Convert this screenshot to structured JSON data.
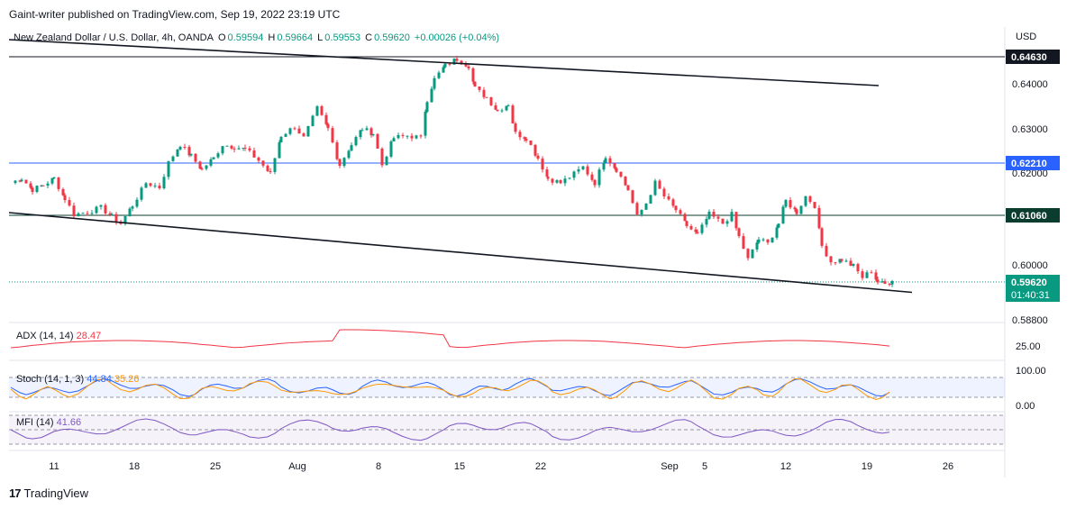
{
  "header": {
    "published": "Gaint-writer published on TradingView.com, Sep 19, 2022 23:19 UTC"
  },
  "symbol": {
    "name": "New Zealand Dollar / U.S. Dollar, 4h, OANDA",
    "open_label": "O",
    "open": "0.59594",
    "high_label": "H",
    "high": "0.59664",
    "low_label": "L",
    "low": "0.59553",
    "close_label": "C",
    "close": "0.59620",
    "change": "+0.00026 (+0.04%)"
  },
  "currency": "USD",
  "price_badges": {
    "top_line": "0.64630",
    "blue_line": "0.62210",
    "dark_line": "0.61060",
    "current_price": "0.59620",
    "countdown": "01:40:31"
  },
  "indicators": {
    "adx": {
      "label": "ADX (14, 14)",
      "value": "28.47",
      "level": "25.00"
    },
    "stoch": {
      "label": "Stoch (14, 1, 3)",
      "k": "44.84",
      "d": "35.26",
      "upper": "100.00",
      "lower": "0.00"
    },
    "mfi": {
      "label": "MFI (14)",
      "value": "41.66"
    }
  },
  "footer": {
    "brand": "TradingView"
  },
  "colors": {
    "up": "#089981",
    "down": "#f23645",
    "blue_line": "#2962ff",
    "dark_line": "#0b3d2e",
    "adx": "#f23645",
    "stoch_k": "#2962ff",
    "stoch_d": "#ff9800",
    "mfi": "#7e57c2"
  },
  "chart_data": {
    "type": "candlestick",
    "x_tick_labels": [
      "11",
      "18",
      "25",
      "Aug",
      "8",
      "15",
      "22",
      "Sep",
      "5",
      "12",
      "19",
      "26"
    ],
    "y_tick_labels": [
      "0.64000",
      "0.63000",
      "0.62000",
      "0.60000",
      "0.58800"
    ],
    "horizontal_levels": [
      0.6463,
      0.6221,
      0.6106
    ],
    "close_path": [
      [
        0,
        0.618
      ],
      [
        12,
        0.619
      ],
      [
        24,
        0.6165
      ],
      [
        36,
        0.6175
      ],
      [
        48,
        0.619
      ],
      [
        60,
        0.6145
      ],
      [
        70,
        0.611
      ],
      [
        85,
        0.6115
      ],
      [
        100,
        0.6125
      ],
      [
        112,
        0.6105
      ],
      [
        122,
        0.609
      ],
      [
        135,
        0.613
      ],
      [
        150,
        0.618
      ],
      [
        165,
        0.617
      ],
      [
        175,
        0.6225
      ],
      [
        188,
        0.6265
      ],
      [
        200,
        0.624
      ],
      [
        212,
        0.621
      ],
      [
        225,
        0.6235
      ],
      [
        235,
        0.6265
      ],
      [
        248,
        0.626
      ],
      [
        260,
        0.6255
      ],
      [
        275,
        0.623
      ],
      [
        288,
        0.62
      ],
      [
        300,
        0.6285
      ],
      [
        315,
        0.6305
      ],
      [
        325,
        0.628
      ],
      [
        340,
        0.6345
      ],
      [
        352,
        0.63
      ],
      [
        365,
        0.622
      ],
      [
        378,
        0.6265
      ],
      [
        390,
        0.63
      ],
      [
        402,
        0.629
      ],
      [
        412,
        0.622
      ],
      [
        425,
        0.628
      ],
      [
        440,
        0.6285
      ],
      [
        455,
        0.628
      ],
      [
        462,
        0.6365
      ],
      [
        470,
        0.641
      ],
      [
        482,
        0.644
      ],
      [
        495,
        0.6455
      ],
      [
        508,
        0.644
      ],
      [
        515,
        0.639
      ],
      [
        528,
        0.637
      ],
      [
        540,
        0.634
      ],
      [
        552,
        0.6355
      ],
      [
        560,
        0.629
      ],
      [
        572,
        0.628
      ],
      [
        585,
        0.6235
      ],
      [
        596,
        0.619
      ],
      [
        610,
        0.618
      ],
      [
        625,
        0.62
      ],
      [
        635,
        0.6215
      ],
      [
        648,
        0.618
      ],
      [
        660,
        0.624
      ],
      [
        672,
        0.621
      ],
      [
        685,
        0.6165
      ],
      [
        695,
        0.6105
      ],
      [
        705,
        0.6135
      ],
      [
        715,
        0.618
      ],
      [
        725,
        0.615
      ],
      [
        738,
        0.612
      ],
      [
        750,
        0.6085
      ],
      [
        762,
        0.6065
      ],
      [
        775,
        0.611
      ],
      [
        790,
        0.609
      ],
      [
        800,
        0.611
      ],
      [
        808,
        0.606
      ],
      [
        818,
        0.601
      ],
      [
        830,
        0.6055
      ],
      [
        840,
        0.6045
      ],
      [
        852,
        0.609
      ],
      [
        860,
        0.614
      ],
      [
        872,
        0.6115
      ],
      [
        882,
        0.615
      ],
      [
        892,
        0.613
      ],
      [
        900,
        0.604
      ],
      [
        910,
        0.6005
      ],
      [
        922,
        0.601
      ],
      [
        935,
        0.5995
      ],
      [
        945,
        0.597
      ],
      [
        955,
        0.5985
      ],
      [
        962,
        0.596
      ],
      [
        970,
        0.5955
      ],
      [
        978,
        0.5962
      ]
    ],
    "channel": {
      "upper": [
        [
          10,
          0.6498
        ],
        [
          975,
          0.6396
        ]
      ],
      "lower": [
        [
          10,
          0.6114
        ],
        [
          1012,
          0.5937
        ]
      ]
    }
  }
}
